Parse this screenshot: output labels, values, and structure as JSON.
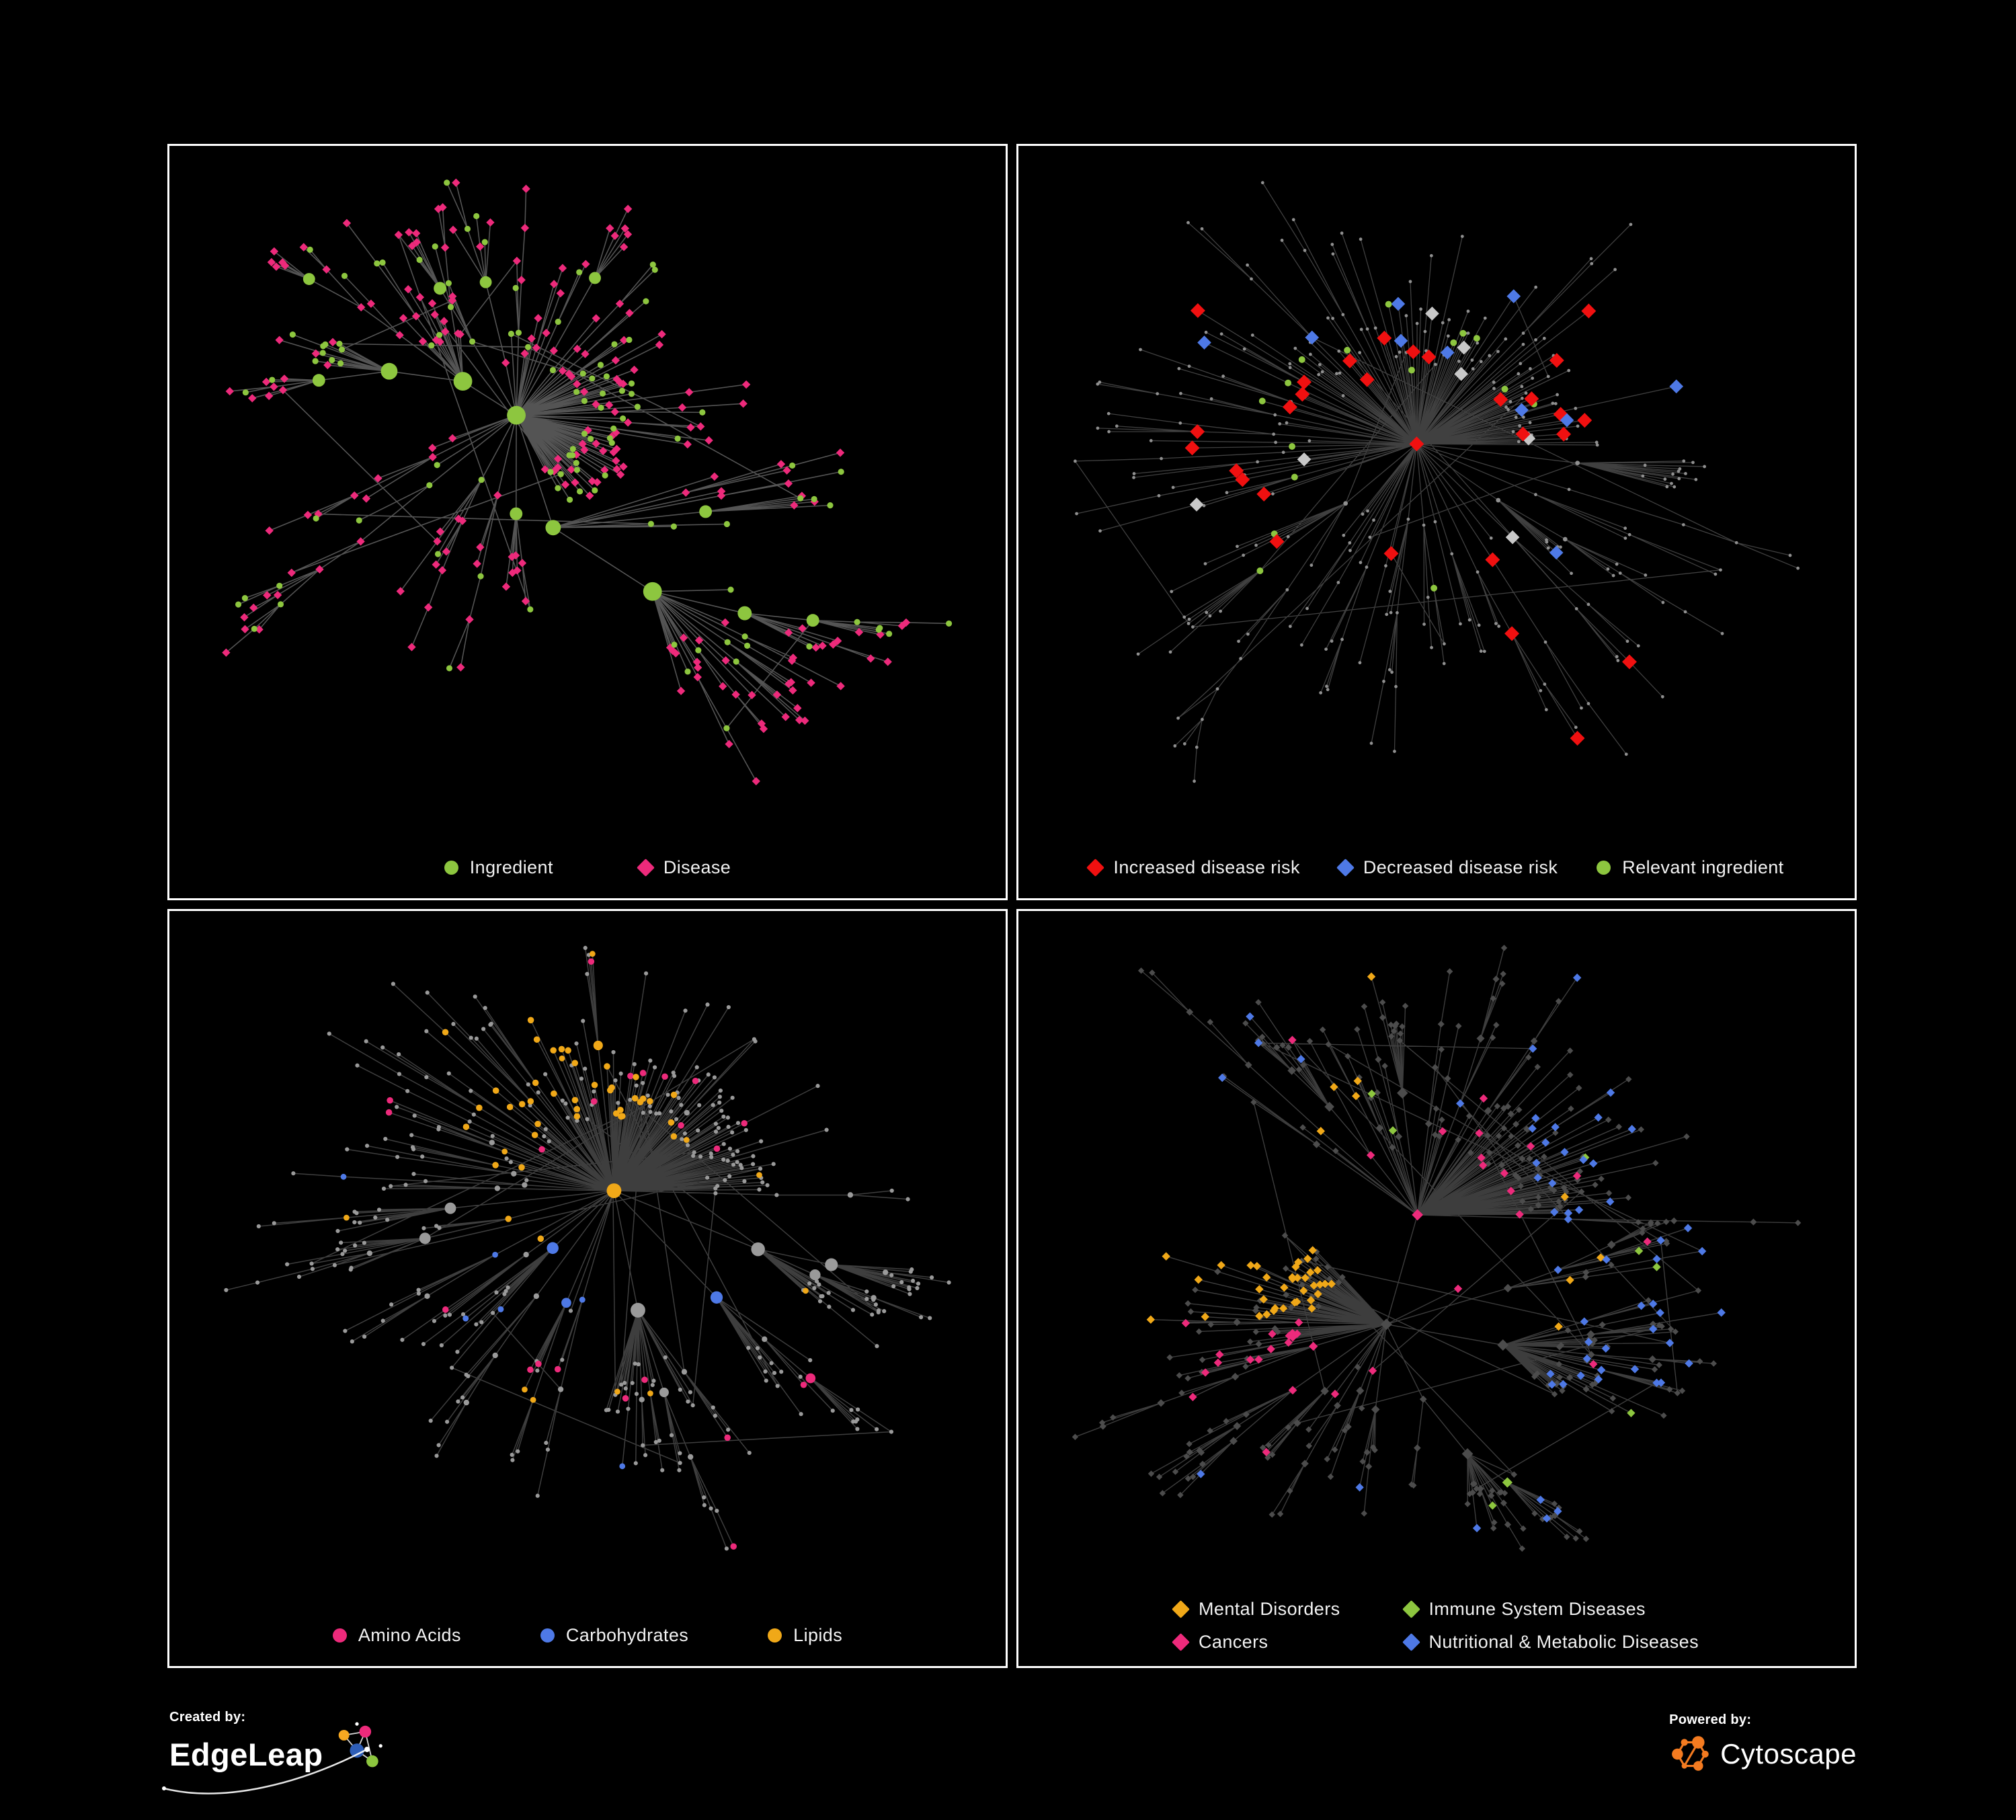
{
  "page": {
    "background": "#000000",
    "panel_border": "#ffffff",
    "text_color": "#f2f2f2"
  },
  "colors": {
    "green": "#8dc63f",
    "pink": "#ed2a7b",
    "red": "#f01010",
    "blue": "#4e79e6",
    "orange": "#f0a818",
    "gray_node": "#9a9a9a",
    "dark_gray_node": "#4c4c4c",
    "light_gray": "#c8c8c8"
  },
  "panels": [
    {
      "id": "ingredient-disease",
      "legend": [
        {
          "label": "Ingredient",
          "shape": "circle",
          "color": "#8dc63f"
        },
        {
          "label": "Disease",
          "shape": "diamond",
          "color": "#ed2a7b"
        }
      ],
      "network": {
        "seed": 7,
        "nodes": 340,
        "hub": 1.25,
        "extra_edges": 12,
        "style": "ingredient_disease",
        "edge": {
          "color": "#8c8c8c",
          "opacity": 0.6,
          "width": 1.6
        }
      }
    },
    {
      "id": "disease-risk",
      "legend": [
        {
          "label": "Increased disease risk",
          "shape": "diamond",
          "color": "#f01010"
        },
        {
          "label": "Decreased disease risk",
          "shape": "diamond",
          "color": "#4e79e6"
        },
        {
          "label": "Relevant ingredient",
          "shape": "circle",
          "color": "#8dc63f"
        }
      ],
      "network": {
        "seed": 13,
        "nodes": 340,
        "hub": 1.2,
        "extra_edges": 10,
        "style": "risk",
        "highlights": {
          "red": 26,
          "blue": 9,
          "green": 16,
          "gray": 7
        },
        "edge": {
          "color": "#808080",
          "opacity": 0.5,
          "width": 1.3
        }
      }
    },
    {
      "id": "nutrient-classes",
      "legend": [
        {
          "label": "Amino Acids",
          "shape": "circle",
          "color": "#ed2a7b"
        },
        {
          "label": "Carbohydrates",
          "shape": "circle",
          "color": "#4e79e6"
        },
        {
          "label": "Lipids",
          "shape": "circle",
          "color": "#f0a818"
        }
      ],
      "network": {
        "seed": 21,
        "nodes": 430,
        "hub": 1.25,
        "extra_edges": 14,
        "style": "nutrients",
        "edge": {
          "color": "#8a8a8a",
          "opacity": 0.45,
          "width": 1.5
        }
      }
    },
    {
      "id": "disease-classes",
      "legend": [
        {
          "label": "Mental Disorders",
          "shape": "diamond",
          "color": "#f0a818"
        },
        {
          "label": "Immune System Diseases",
          "shape": "diamond",
          "color": "#8dc63f"
        },
        {
          "label": "Cancers",
          "shape": "diamond",
          "color": "#ed2a7b"
        },
        {
          "label": "Nutritional & Metabolic Diseases",
          "shape": "diamond",
          "color": "#4e79e6"
        }
      ],
      "network": {
        "seed": 42,
        "nodes": 470,
        "hub": 1.2,
        "extra_edges": 16,
        "style": "disease_classes",
        "edge": {
          "color": "#7a7a7a",
          "opacity": 0.5,
          "width": 1.4
        }
      }
    }
  ],
  "footer": {
    "created_by_label": "Created by:",
    "created_by_name": "EdgeLeap",
    "powered_by_label": "Powered by:",
    "powered_by_name": "Cytoscape",
    "edgeleap_colors": {
      "yellow": "#f6a821",
      "pink": "#ed2a7b",
      "blue": "#2e5eb8",
      "green": "#8dc63f"
    },
    "cytoscape_color": "#f47b20"
  }
}
